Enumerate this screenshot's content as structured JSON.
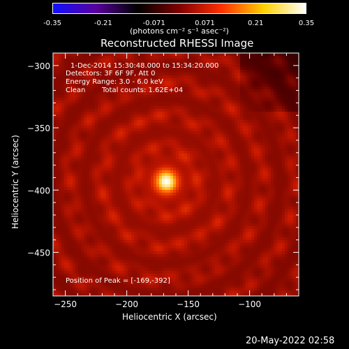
{
  "colorbar": {
    "min": -0.35,
    "max": 0.35,
    "tick_labels": [
      "-0.35",
      "-0.21",
      "-0.071",
      "0.071",
      "0.21",
      "0.35"
    ],
    "units_label": "(photons cm⁻² s⁻¹ asec⁻²)",
    "colors": [
      "#1010ff",
      "#5a00a0",
      "#000000",
      "#800000",
      "#ff3000",
      "#ffd000",
      "#ffffff"
    ]
  },
  "chart_data": {
    "type": "heatmap",
    "title": "Reconstructed RHESSI Image",
    "xlabel": "Heliocentric X (arcsec)",
    "ylabel": "Heliocentric Y (arcsec)",
    "xlim": [
      -260,
      -60
    ],
    "ylim": [
      -485,
      -290
    ],
    "x_ticks": [
      -250,
      -200,
      -150,
      -100
    ],
    "x_tick_labels": [
      "−250",
      "−200",
      "−150",
      "−100"
    ],
    "y_ticks": [
      -300,
      -350,
      -400,
      -450
    ],
    "y_tick_labels": [
      "−300",
      "−350",
      "−400",
      "−450"
    ],
    "peak_position": [
      -169,
      -392
    ],
    "peak_value": 0.35,
    "background_level": 0.1,
    "annotations": {
      "time_range": "1-Dec-2014 15:30:48.000 to 15:34:20.000",
      "detectors": "Detectors: 3F 6F 9F, Att 0",
      "energy": "Energy Range: 3.0 - 6.0 keV",
      "method": "Clean",
      "counts": "Total counts: 1.62E+04",
      "peak_text": "Position of Peak = [-169,-392]"
    }
  },
  "footer": {
    "timestamp": "20-May-2022 02:58"
  }
}
